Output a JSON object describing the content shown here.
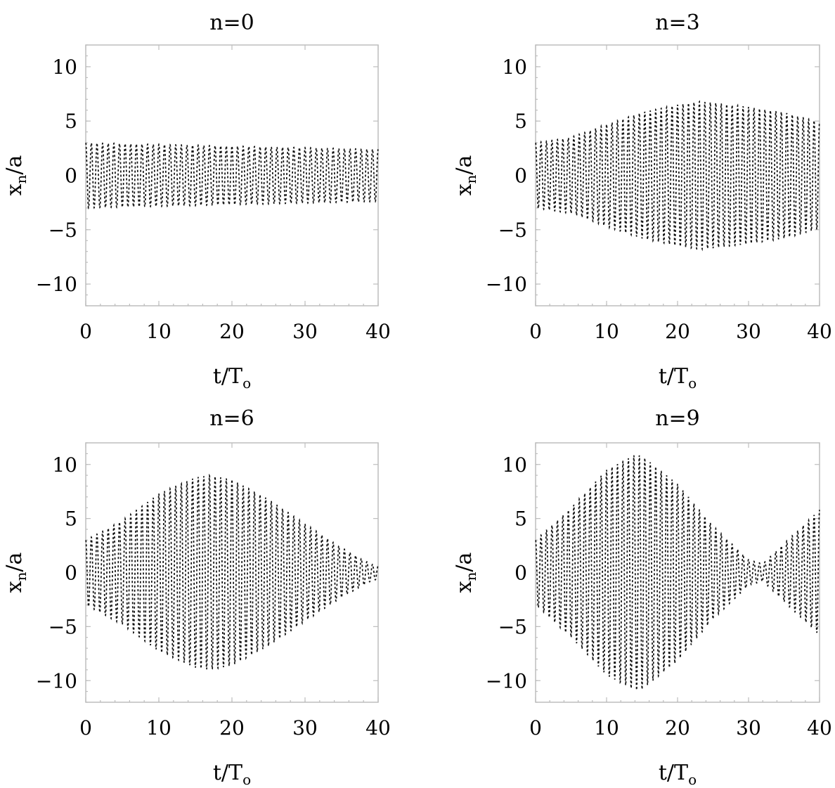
{
  "chart_data": [
    {
      "type": "line",
      "title": "n=0",
      "xlabel": "t/T",
      "xlabel_sub": "o",
      "ylabel": "x",
      "ylabel_sub": "n",
      "ylabel_suffix": "/a",
      "xlim": [
        0,
        40
      ],
      "ylim": [
        -12,
        12
      ],
      "xticks": [
        0,
        10,
        20,
        30,
        40
      ],
      "yticks": [
        10,
        5,
        0,
        -5,
        -10
      ],
      "xtick_labels": [
        "0",
        "10",
        "20",
        "30",
        "40"
      ],
      "ytick_labels": [
        "10",
        "5",
        "0",
        "−5",
        "−10"
      ],
      "oscillation_frequency_per_T": 1.3,
      "envelope": {
        "t": [
          0,
          40
        ],
        "amplitude": [
          3.0,
          2.4
        ]
      }
    },
    {
      "type": "line",
      "title": "n=3",
      "xlabel": "t/T",
      "xlabel_sub": "o",
      "ylabel": "x",
      "ylabel_sub": "n",
      "ylabel_suffix": "/a",
      "xlim": [
        0,
        40
      ],
      "ylim": [
        -12,
        12
      ],
      "xticks": [
        0,
        10,
        20,
        30,
        40
      ],
      "yticks": [
        10,
        5,
        0,
        -5,
        -10
      ],
      "xtick_labels": [
        "0",
        "10",
        "20",
        "30",
        "40"
      ],
      "ytick_labels": [
        "10",
        "5",
        "0",
        "−5",
        "−10"
      ],
      "oscillation_frequency_per_T": 1.3,
      "envelope": {
        "t": [
          0,
          5,
          10,
          15,
          20,
          23,
          25,
          30,
          35,
          40
        ],
        "amplitude": [
          3.0,
          3.5,
          4.7,
          5.8,
          6.5,
          6.8,
          6.7,
          6.3,
          5.8,
          4.9
        ]
      }
    },
    {
      "type": "line",
      "title": "n=6",
      "xlabel": "t/T",
      "xlabel_sub": "o",
      "ylabel": "x",
      "ylabel_sub": "n",
      "ylabel_suffix": "/a",
      "xlim": [
        0,
        40
      ],
      "ylim": [
        -12,
        12
      ],
      "xticks": [
        0,
        10,
        20,
        30,
        40
      ],
      "yticks": [
        10,
        5,
        0,
        -5,
        -10
      ],
      "xtick_labels": [
        "0",
        "10",
        "20",
        "30",
        "40"
      ],
      "ytick_labels": [
        "10",
        "5",
        "0",
        "−5",
        "−10"
      ],
      "oscillation_frequency_per_T": 1.3,
      "envelope": {
        "t": [
          0,
          5,
          10,
          15,
          17,
          20,
          25,
          30,
          35,
          39,
          40
        ],
        "amplitude": [
          3.0,
          4.8,
          7.3,
          8.8,
          9.0,
          8.6,
          6.8,
          4.5,
          2.3,
          0.8,
          0.6
        ]
      }
    },
    {
      "type": "line",
      "title": "n=9",
      "xlabel": "t/T",
      "xlabel_sub": "o",
      "ylabel": "x",
      "ylabel_sub": "n",
      "ylabel_suffix": "/a",
      "xlim": [
        0,
        40
      ],
      "ylim": [
        -12,
        12
      ],
      "xticks": [
        0,
        10,
        20,
        30,
        40
      ],
      "yticks": [
        10,
        5,
        0,
        -5,
        -10
      ],
      "xtick_labels": [
        "0",
        "10",
        "20",
        "30",
        "40"
      ],
      "ytick_labels": [
        "10",
        "5",
        "0",
        "−5",
        "−10"
      ],
      "oscillation_frequency_per_T": 1.3,
      "envelope": {
        "t": [
          0,
          5,
          10,
          14,
          15,
          20,
          25,
          30,
          32,
          35,
          40
        ],
        "amplitude": [
          3.0,
          6.0,
          9.5,
          10.9,
          10.8,
          8.2,
          4.3,
          1.2,
          0.8,
          2.7,
          5.8
        ]
      }
    }
  ]
}
